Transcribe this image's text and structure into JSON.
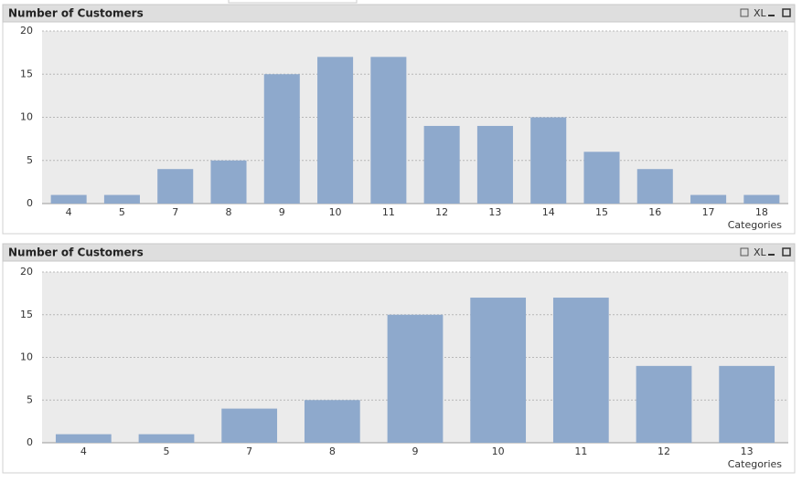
{
  "chart_data": [
    {
      "type": "bar",
      "title": "Number of Customers",
      "toolbar_text": "XL",
      "x_label": "Categories",
      "categories": [
        "4",
        "5",
        "7",
        "8",
        "9",
        "10",
        "11",
        "12",
        "13",
        "14",
        "15",
        "16",
        "17",
        "18"
      ],
      "values": [
        1,
        1,
        4,
        5,
        15,
        17,
        17,
        9,
        9,
        10,
        6,
        4,
        1,
        1
      ],
      "color": "#8ea9cc",
      "ylim": [
        0,
        20
      ],
      "yticks": [
        0,
        5,
        10,
        15,
        20
      ],
      "grid": true
    },
    {
      "type": "bar",
      "title": "Number of Customers",
      "toolbar_text": "XL",
      "x_label": "Categories",
      "categories": [
        "4",
        "5",
        "7",
        "8",
        "9",
        "10",
        "11",
        "12",
        "13"
      ],
      "values": [
        1,
        1,
        4,
        5,
        15,
        17,
        17,
        9,
        9
      ],
      "color": "#8ea9cc",
      "ylim": [
        0,
        20
      ],
      "yticks": [
        0,
        5,
        10,
        15,
        20
      ],
      "grid": true
    }
  ]
}
